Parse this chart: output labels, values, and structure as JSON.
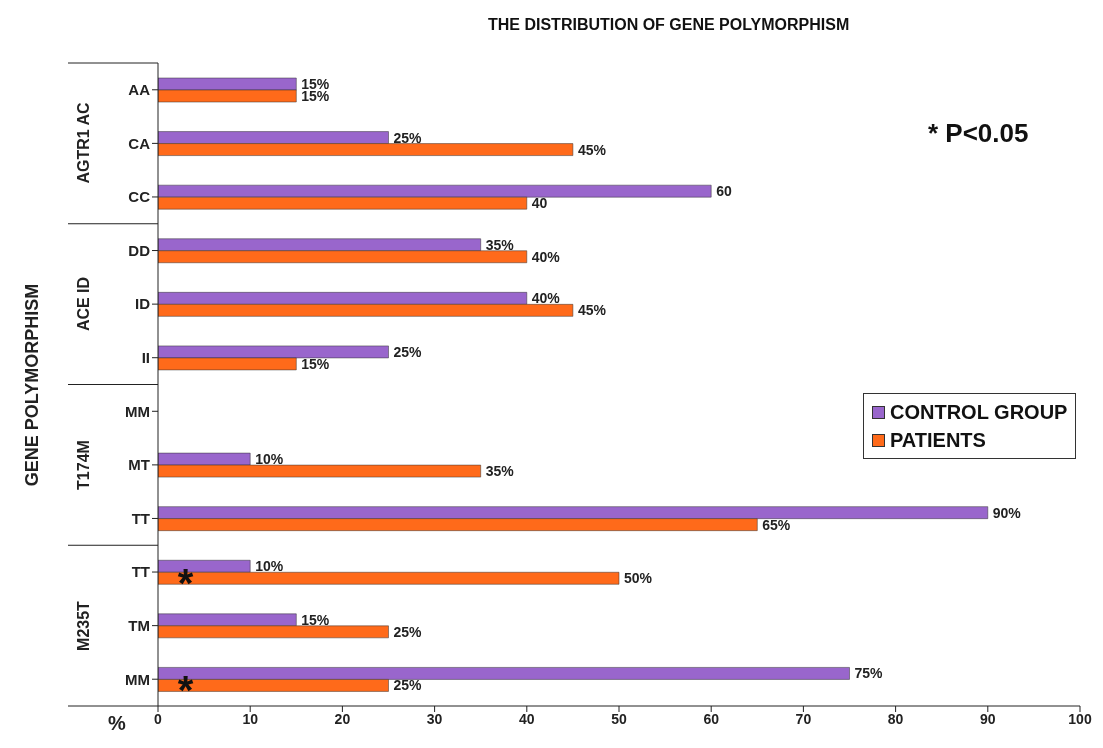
{
  "chart_data": {
    "type": "bar",
    "orientation": "horizontal",
    "title": "THE DISTRIBUTION OF GENE POLYMORPHISM",
    "xlabel": "%",
    "ylabel": "GENE POLYMORPHISM",
    "categories": [
      "AA",
      "CA",
      "CC",
      "DD",
      "ID",
      "II",
      "MM",
      "MT",
      "TT",
      "TT",
      "TM",
      "MM"
    ],
    "series": [
      {
        "name": "CONTROL GROUP",
        "color": "#9966cc",
        "values": [
          15,
          25,
          60,
          35,
          40,
          25,
          null,
          10,
          90,
          10,
          15,
          75
        ],
        "value_labels": [
          "15%",
          "25%",
          "60",
          "35%",
          "40%",
          "25%",
          null,
          "10%",
          "90%",
          "10%",
          "15%",
          "75%"
        ]
      },
      {
        "name": "PATIENTS",
        "color": "#ff6a1a",
        "values": [
          15,
          45,
          40,
          40,
          45,
          15,
          null,
          35,
          65,
          50,
          25,
          25
        ],
        "value_labels": [
          "15%",
          "45%",
          "40",
          "40%",
          "45%",
          "15%",
          null,
          "35%",
          "65%",
          "50%",
          "25%",
          "25%"
        ]
      }
    ],
    "xlim": [
      0,
      100
    ],
    "xticks": [
      0,
      10,
      20,
      30,
      40,
      50,
      60,
      70,
      80,
      90,
      100
    ],
    "grid": false,
    "legend": "right",
    "annotations": [
      "* P<0.05",
      "AGTR1 AC",
      "ACE ID",
      "T174M",
      "M235T",
      "*",
      "*"
    ]
  }
}
